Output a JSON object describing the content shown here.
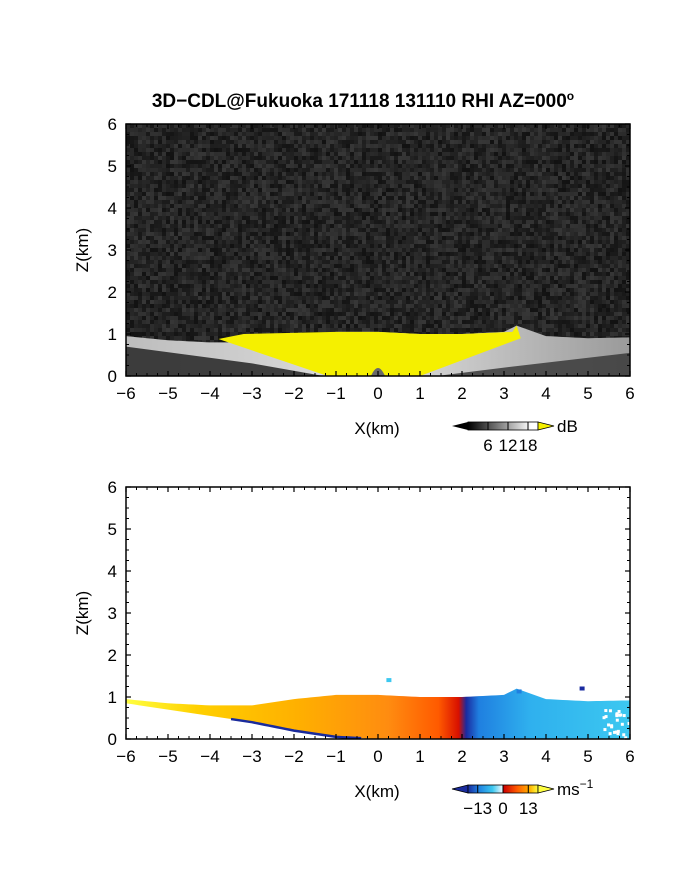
{
  "figure": {
    "title": "3D−CDL@Fukuoka 171118 131110 RHI AZ=000",
    "title_superscript": "o"
  },
  "chart_data": [
    {
      "type": "heatmap",
      "name": "reflectivity",
      "title": "3D−CDL@Fukuoka 171118 131110 RHI AZ=000°",
      "xlabel": "X(km)",
      "ylabel": "Z(km)",
      "xlim": [
        -6,
        6
      ],
      "ylim": [
        0,
        6
      ],
      "xticks": [
        -6,
        -5,
        -4,
        -3,
        -2,
        -1,
        0,
        1,
        2,
        3,
        4,
        5,
        6
      ],
      "yticks": [
        0,
        1,
        2,
        3,
        4,
        5,
        6
      ],
      "xtick_labels": [
        "−6",
        "−5",
        "−4",
        "−3",
        "−2",
        "−1",
        "0",
        "1",
        "2",
        "3",
        "4",
        "5",
        "6"
      ],
      "ytick_labels": [
        "0",
        "1",
        "2",
        "3",
        "4",
        "5",
        "6"
      ],
      "background": "noise field, dark gray",
      "echo_top_profile": {
        "x": [
          -6,
          -5,
          -4,
          -3,
          -2,
          -1,
          0,
          1,
          2,
          3,
          3.3,
          4,
          5,
          6
        ],
        "top_km": [
          0.95,
          0.85,
          0.8,
          0.8,
          0.95,
          1.05,
          1.05,
          1.0,
          1.0,
          1.05,
          1.2,
          0.95,
          0.9,
          0.92
        ]
      },
      "saturated_region": {
        "description": "values above 18 dB (yellow) in an inverted triangle above the radar",
        "top_km": 1.0,
        "x_at_top": [
          -3.2,
          3.2
        ],
        "x_at_ground": [
          -1.2,
          1.0
        ]
      },
      "colorbar": {
        "unit": "dB",
        "ticks": [
          6,
          12,
          18
        ],
        "tick_labels": [
          "6",
          "12",
          "18"
        ],
        "range": [
          0,
          21
        ],
        "over_color": "#f5f000",
        "colors": [
          "#000000",
          "#ffffff",
          "#f5f000"
        ]
      }
    },
    {
      "type": "heatmap",
      "name": "doppler_velocity",
      "xlabel": "X(km)",
      "ylabel": "Z(km)",
      "xlim": [
        -6,
        6
      ],
      "ylim": [
        0,
        6
      ],
      "xticks": [
        -6,
        -5,
        -4,
        -3,
        -2,
        -1,
        0,
        1,
        2,
        3,
        4,
        5,
        6
      ],
      "yticks": [
        0,
        1,
        2,
        3,
        4,
        5,
        6
      ],
      "xtick_labels": [
        "−6",
        "−5",
        "−4",
        "−3",
        "−2",
        "−1",
        "0",
        "1",
        "2",
        "3",
        "4",
        "5",
        "6"
      ],
      "ytick_labels": [
        "0",
        "1",
        "2",
        "3",
        "4",
        "5",
        "6"
      ],
      "echo_top_profile": {
        "x": [
          -6,
          -5,
          -4,
          -3,
          -2,
          -1,
          0,
          1,
          2,
          3,
          3.3,
          4,
          5,
          6
        ],
        "top_km": [
          0.95,
          0.85,
          0.8,
          0.8,
          0.95,
          1.05,
          1.05,
          1.0,
          1.0,
          1.05,
          1.2,
          0.95,
          0.9,
          0.92
        ]
      },
      "velocity_field": {
        "x": [
          -6,
          -3,
          -1,
          -0.3,
          0,
          0.3,
          2,
          6
        ],
        "velocity_ms": [
          13,
          11,
          7,
          2,
          -2,
          -9,
          -11,
          -12
        ]
      },
      "echo_bottom_left": {
        "x": [
          -6,
          -4,
          -3,
          -2,
          -1,
          0
        ],
        "bottom_km": [
          0.85,
          0.55,
          0.4,
          0.2,
          0.05,
          0
        ]
      },
      "colorbar": {
        "unit": "ms",
        "unit_superscript": "−1",
        "ticks": [
          -13,
          0,
          13
        ],
        "tick_labels": [
          "−13",
          "0",
          "13"
        ],
        "range": [
          -18,
          18
        ],
        "colors": [
          "#1a2b9c",
          "#1f7fe0",
          "#3cc8f0",
          "#b0e8f8",
          "#ffffff",
          "#cc0000",
          "#ff5a00",
          "#ffb000",
          "#ffff40"
        ]
      }
    }
  ]
}
